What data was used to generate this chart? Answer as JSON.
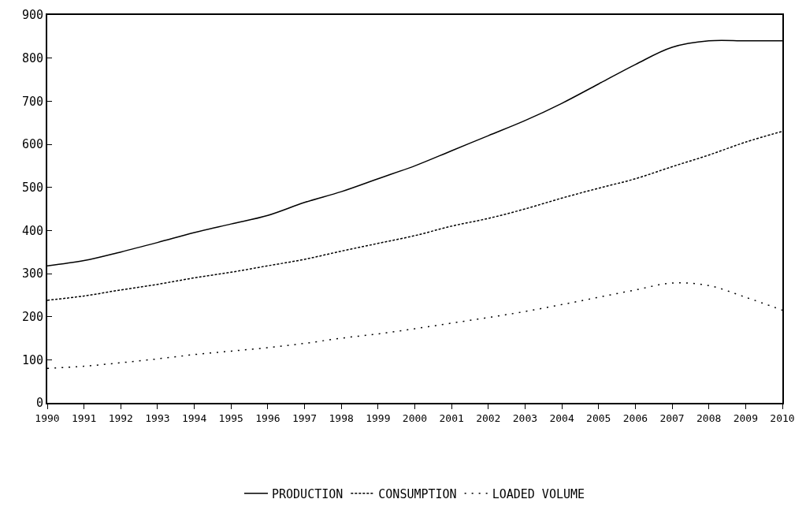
{
  "chart_data": {
    "type": "line",
    "x": [
      1990,
      1991,
      1992,
      1993,
      1994,
      1995,
      1996,
      1997,
      1998,
      1999,
      2000,
      2001,
      2002,
      2003,
      2004,
      2005,
      2006,
      2007,
      2008,
      2009,
      2010
    ],
    "series": [
      {
        "name": "PRODUCTION",
        "color": "#000000",
        "line_style": "solid",
        "values": [
          318,
          330,
          350,
          372,
          395,
          415,
          435,
          465,
          490,
          520,
          550,
          585,
          620,
          655,
          695,
          740,
          785,
          825,
          840,
          840,
          840
        ]
      },
      {
        "name": "CONSUMPTION",
        "color": "#000000",
        "line_style": "dashed",
        "values": [
          238,
          248,
          262,
          275,
          290,
          303,
          318,
          333,
          352,
          370,
          388,
          410,
          428,
          450,
          475,
          498,
          520,
          548,
          575,
          605,
          630
        ]
      },
      {
        "name": "LOADED VOLUME",
        "color": "#000000",
        "line_style": "dotted",
        "values": [
          80,
          85,
          93,
          102,
          112,
          120,
          128,
          138,
          150,
          160,
          172,
          185,
          198,
          212,
          228,
          245,
          262,
          278,
          272,
          245,
          215
        ]
      }
    ],
    "xlim": [
      1990,
      2010
    ],
    "xticks": [
      1990,
      1991,
      1992,
      1993,
      1994,
      1995,
      1996,
      1997,
      1998,
      1999,
      2000,
      2001,
      2002,
      2003,
      2004,
      2005,
      2006,
      2007,
      2008,
      2009,
      2010
    ],
    "ylim": [
      0,
      900
    ],
    "yticks": [
      0,
      100,
      200,
      300,
      400,
      500,
      600,
      700,
      800,
      900
    ],
    "legend": "bottom"
  }
}
